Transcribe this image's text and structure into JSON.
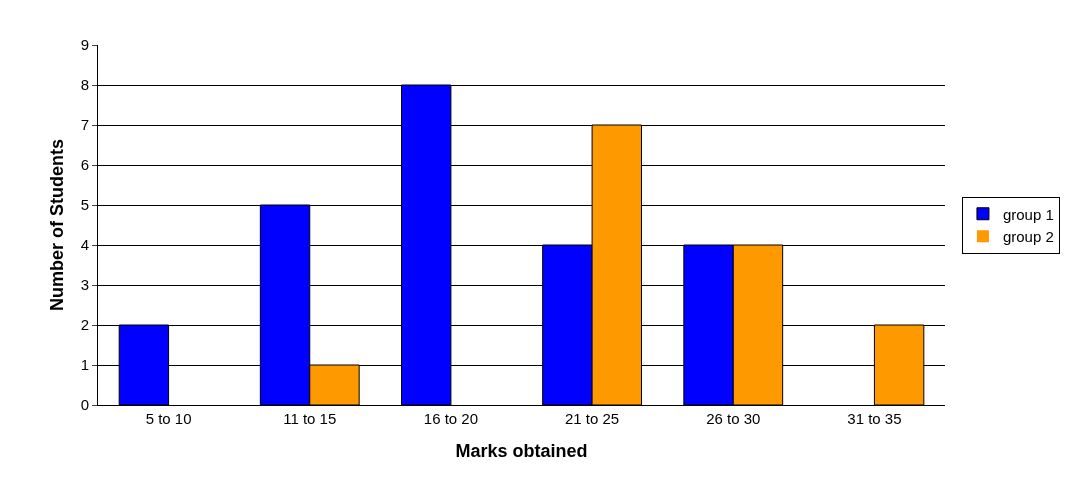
{
  "chart_data": {
    "type": "bar",
    "xlabel": "Marks obtained",
    "ylabel": "Number of Students",
    "categories": [
      "5 to 10",
      "11 to 15",
      "16 to 20",
      "21 to 25",
      "26 to 30",
      "31 to 35"
    ],
    "series": [
      {
        "name": "group 1",
        "color": "#0000ff",
        "values": [
          2,
          5,
          8,
          4,
          4,
          0
        ]
      },
      {
        "name": "group 2",
        "color": "#ff9900",
        "values": [
          0,
          1,
          0,
          7,
          4,
          2
        ]
      }
    ],
    "ylim": [
      0,
      9
    ],
    "yticks": [
      0,
      1,
      2,
      3,
      4,
      5,
      6,
      7,
      8,
      9
    ],
    "grid": "y",
    "legend": "right"
  }
}
